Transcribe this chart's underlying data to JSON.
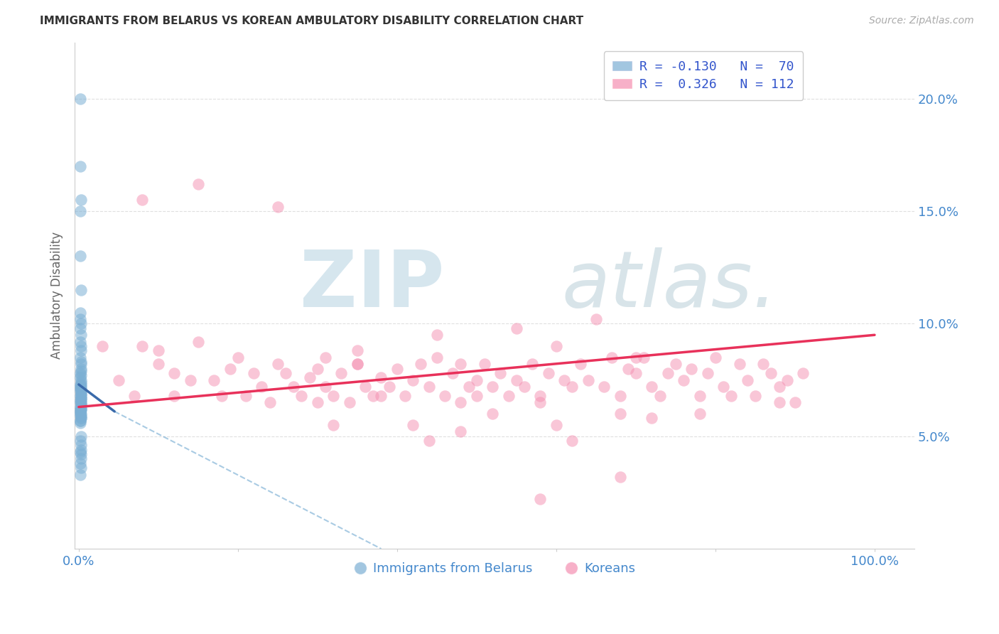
{
  "title": "IMMIGRANTS FROM BELARUS VS KOREAN AMBULATORY DISABILITY CORRELATION CHART",
  "source_text": "Source: ZipAtlas.com",
  "ylabel": "Ambulatory Disability",
  "ylim": [
    0.0,
    0.225
  ],
  "xlim": [
    -0.005,
    1.05
  ],
  "yticks": [
    0.05,
    0.1,
    0.15,
    0.2
  ],
  "ytick_labels": [
    "5.0%",
    "10.0%",
    "15.0%",
    "20.0%"
  ],
  "xtick_positions": [
    0.0,
    0.2,
    0.4,
    0.6,
    0.8,
    1.0
  ],
  "xtick_labels": [
    "0.0%",
    "",
    "",
    "",
    "",
    "100.0%"
  ],
  "blue_color": "#7bafd4",
  "pink_color": "#f48fb1",
  "blue_line_color": "#3a6aaa",
  "pink_line_color": "#e8315a",
  "grid_color": "#e0e0e0",
  "background_color": "#ffffff",
  "blue_line_solid": {
    "x0": 0.0,
    "y0": 0.073,
    "x1": 0.045,
    "y1": 0.061
  },
  "blue_line_dashed": {
    "x0": 0.045,
    "y0": 0.061,
    "x1": 0.38,
    "y1": 0.0
  },
  "pink_line": {
    "x0": 0.0,
    "y0": 0.063,
    "x1": 1.0,
    "y1": 0.095
  },
  "blue_scatter_x": [
    0.002,
    0.002,
    0.003,
    0.002,
    0.002,
    0.003,
    0.002,
    0.002,
    0.003,
    0.002,
    0.003,
    0.002,
    0.003,
    0.003,
    0.002,
    0.003,
    0.003,
    0.003,
    0.003,
    0.002,
    0.003,
    0.002,
    0.003,
    0.003,
    0.002,
    0.003,
    0.002,
    0.003,
    0.003,
    0.002,
    0.003,
    0.002,
    0.003,
    0.003,
    0.003,
    0.002,
    0.003,
    0.003,
    0.003,
    0.002,
    0.003,
    0.002,
    0.003,
    0.003,
    0.003,
    0.002,
    0.003,
    0.003,
    0.002,
    0.002,
    0.002,
    0.002,
    0.003,
    0.003,
    0.002,
    0.003,
    0.003,
    0.002,
    0.002,
    0.002,
    0.003,
    0.002,
    0.003,
    0.003,
    0.002,
    0.003,
    0.003,
    0.002,
    0.003,
    0.002
  ],
  "blue_scatter_y": [
    0.2,
    0.17,
    0.155,
    0.15,
    0.13,
    0.115,
    0.105,
    0.102,
    0.1,
    0.098,
    0.095,
    0.092,
    0.09,
    0.088,
    0.085,
    0.083,
    0.082,
    0.08,
    0.079,
    0.078,
    0.077,
    0.076,
    0.075,
    0.074,
    0.073,
    0.073,
    0.072,
    0.072,
    0.071,
    0.071,
    0.07,
    0.07,
    0.069,
    0.069,
    0.068,
    0.068,
    0.067,
    0.067,
    0.066,
    0.066,
    0.065,
    0.065,
    0.064,
    0.064,
    0.063,
    0.063,
    0.062,
    0.062,
    0.062,
    0.061,
    0.061,
    0.06,
    0.06,
    0.059,
    0.059,
    0.058,
    0.058,
    0.057,
    0.057,
    0.056,
    0.05,
    0.048,
    0.046,
    0.044,
    0.043,
    0.042,
    0.04,
    0.038,
    0.036,
    0.033
  ],
  "pink_scatter_x": [
    0.03,
    0.05,
    0.07,
    0.08,
    0.1,
    0.1,
    0.12,
    0.14,
    0.15,
    0.17,
    0.18,
    0.19,
    0.2,
    0.21,
    0.22,
    0.23,
    0.24,
    0.25,
    0.26,
    0.27,
    0.28,
    0.29,
    0.3,
    0.31,
    0.31,
    0.32,
    0.33,
    0.34,
    0.35,
    0.36,
    0.37,
    0.38,
    0.39,
    0.4,
    0.41,
    0.42,
    0.43,
    0.44,
    0.45,
    0.46,
    0.47,
    0.48,
    0.49,
    0.5,
    0.5,
    0.51,
    0.52,
    0.53,
    0.54,
    0.55,
    0.56,
    0.57,
    0.58,
    0.59,
    0.6,
    0.61,
    0.62,
    0.63,
    0.64,
    0.65,
    0.66,
    0.67,
    0.68,
    0.69,
    0.7,
    0.71,
    0.72,
    0.73,
    0.74,
    0.75,
    0.76,
    0.77,
    0.78,
    0.79,
    0.8,
    0.81,
    0.82,
    0.83,
    0.84,
    0.85,
    0.86,
    0.87,
    0.88,
    0.89,
    0.9,
    0.91,
    0.55,
    0.35,
    0.25,
    0.45,
    0.15,
    0.08,
    0.12,
    0.38,
    0.48,
    0.58,
    0.68,
    0.35,
    0.52,
    0.7,
    0.3,
    0.42,
    0.62,
    0.72,
    0.48,
    0.58,
    0.68,
    0.78,
    0.88,
    0.32,
    0.44,
    0.6
  ],
  "pink_scatter_y": [
    0.09,
    0.075,
    0.068,
    0.09,
    0.082,
    0.088,
    0.078,
    0.075,
    0.092,
    0.075,
    0.068,
    0.08,
    0.085,
    0.068,
    0.078,
    0.072,
    0.065,
    0.082,
    0.078,
    0.072,
    0.068,
    0.076,
    0.08,
    0.072,
    0.085,
    0.068,
    0.078,
    0.065,
    0.082,
    0.072,
    0.068,
    0.076,
    0.072,
    0.08,
    0.068,
    0.075,
    0.082,
    0.072,
    0.085,
    0.068,
    0.078,
    0.082,
    0.072,
    0.068,
    0.075,
    0.082,
    0.072,
    0.078,
    0.068,
    0.075,
    0.072,
    0.082,
    0.068,
    0.078,
    0.09,
    0.075,
    0.072,
    0.082,
    0.075,
    0.102,
    0.072,
    0.085,
    0.068,
    0.08,
    0.078,
    0.085,
    0.072,
    0.068,
    0.078,
    0.082,
    0.075,
    0.08,
    0.068,
    0.078,
    0.085,
    0.072,
    0.068,
    0.082,
    0.075,
    0.068,
    0.082,
    0.078,
    0.072,
    0.075,
    0.065,
    0.078,
    0.098,
    0.088,
    0.152,
    0.095,
    0.162,
    0.155,
    0.068,
    0.068,
    0.065,
    0.065,
    0.06,
    0.082,
    0.06,
    0.085,
    0.065,
    0.055,
    0.048,
    0.058,
    0.052,
    0.022,
    0.032,
    0.06,
    0.065,
    0.055,
    0.048,
    0.055
  ],
  "watermark_zip_color": "#c5dce8",
  "watermark_atlas_color": "#b8cfd8",
  "source_color": "#aaaaaa",
  "title_color": "#333333",
  "axis_label_color": "#666666",
  "tick_color": "#4488cc",
  "legend_r_color": "#3355cc",
  "legend_n_color": "#3355cc"
}
